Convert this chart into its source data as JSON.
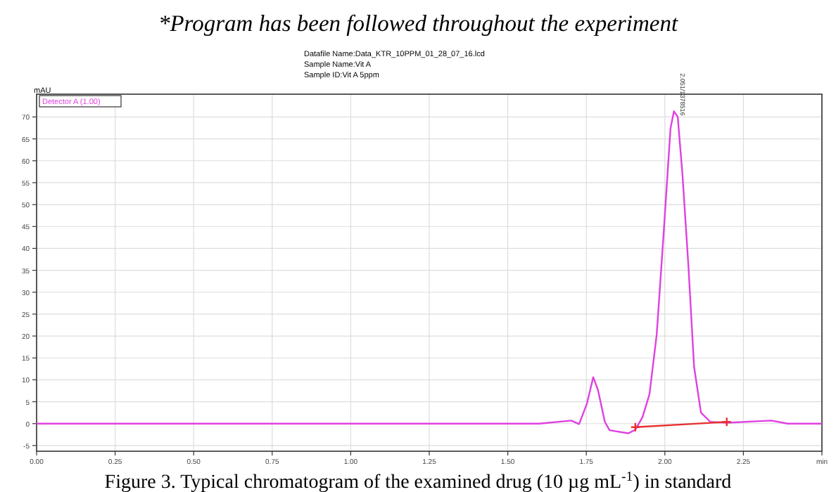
{
  "chart_data": {
    "type": "line",
    "title": "*Program has been followed throughout the experiment",
    "subtitle": "Datafile Name:Data_KTR_10PPM_01_28_07_16.lcd\nSample Name:Vit A\nSample ID:Vit A 5ppm",
    "ylabel": "mAU",
    "xlim": [
      0,
      2.5
    ],
    "ylim": [
      -6.3,
      75.2
    ],
    "xticks": [
      {
        "value": 0,
        "label": "0.00"
      },
      {
        "value": 0.25,
        "label": "0.25"
      },
      {
        "value": 0.5,
        "label": "0.50"
      },
      {
        "value": 0.75,
        "label": "0.75"
      },
      {
        "value": 1,
        "label": "1.00"
      },
      {
        "value": 1.25,
        "label": "1.25"
      },
      {
        "value": 1.5,
        "label": "1.50"
      },
      {
        "value": 1.75,
        "label": "1.75"
      },
      {
        "value": 2,
        "label": "2.00"
      },
      {
        "value": 2.25,
        "label": "2.25"
      },
      {
        "value": 2.5,
        "label": "min"
      }
    ],
    "yticks": [
      -5,
      0,
      5,
      10,
      15,
      20,
      25,
      30,
      35,
      40,
      45,
      50,
      55,
      60,
      65,
      70
    ],
    "grid": true,
    "legend": "top left",
    "line_style": "solid",
    "series": [
      {
        "name": "Detector A (1.00)",
        "color": "#e040e0",
        "marker": "none",
        "x": [
          0,
          1.6,
          1.702,
          1.727,
          1.752,
          1.772,
          1.787,
          1.809,
          1.824,
          1.884,
          1.906,
          1.929,
          1.951,
          1.974,
          1.996,
          2.018,
          2.029,
          2.041,
          2.056,
          2.075,
          2.093,
          2.115,
          2.145,
          2.197,
          2.339,
          2.391,
          2.5
        ],
        "values": [
          0,
          0,
          0.7,
          -0.1,
          4.6,
          10.6,
          7.7,
          0.4,
          -1.5,
          -2.2,
          -1.4,
          1.5,
          6.7,
          20.3,
          43.3,
          67.4,
          71.3,
          70,
          56.9,
          36,
          13,
          2.5,
          0.4,
          0.2,
          0.7,
          0,
          0
        ]
      },
      {
        "type": "line",
        "color": "#e83030",
        "marker": "cross",
        "x": [
          1.906,
          2.197
        ],
        "values": [
          -0.8,
          0.4
        ]
      }
    ],
    "annotations": [
      {
        "text": "2.051/1378516",
        "x": 2.041,
        "y": 70
      },
      "Figure 3. Typical chromatogram of the examined drug (10 µg mL$^{-1}$) in standard"
    ]
  }
}
